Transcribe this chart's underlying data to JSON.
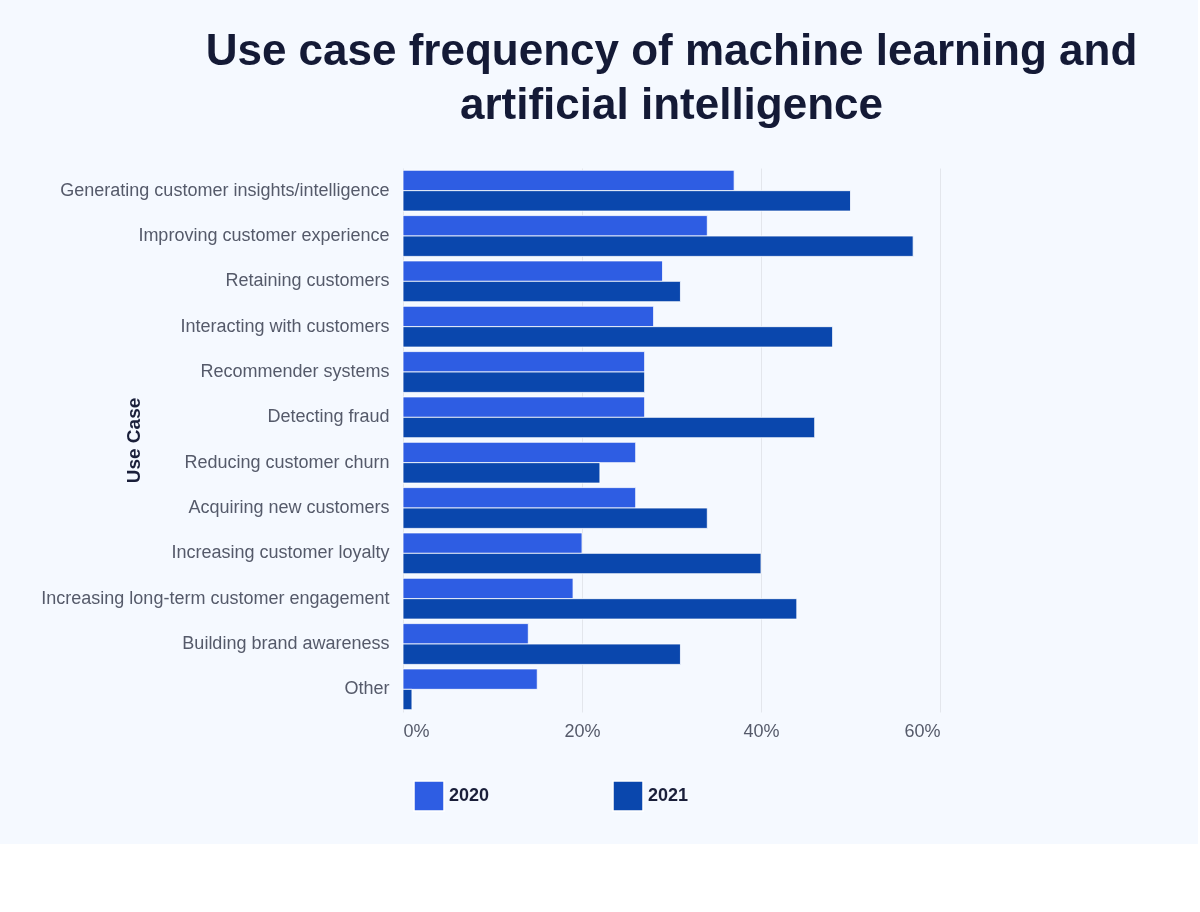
{
  "chart_data": {
    "type": "bar",
    "orientation": "horizontal",
    "title": "Use case frequency of machine learning and artificial intelligence",
    "ylabel": "Use Case",
    "categories": [
      "Generating customer insights/intelligence",
      "Improving customer experience",
      "Retaining customers",
      "Interacting with customers",
      "Recommender systems",
      "Detecting fraud",
      "Reducing customer churn",
      "Acquiring new customers",
      "Increasing customer loyalty",
      "Increasing long-term customer engagement",
      "Building brand awareness",
      "Other"
    ],
    "series": [
      {
        "name": "2020",
        "color": "#2e5de3",
        "values": [
          37,
          34,
          29,
          28,
          27,
          27,
          26,
          26,
          20,
          19,
          14,
          15
        ]
      },
      {
        "name": "2021",
        "color": "#0a47ad",
        "values": [
          50,
          57,
          31,
          48,
          27,
          46,
          22,
          34,
          40,
          44,
          31,
          1
        ]
      }
    ],
    "xlim": [
      0,
      60
    ],
    "xticks": [
      {
        "value": 0,
        "label": "0%"
      },
      {
        "value": 20,
        "label": "20%"
      },
      {
        "value": 40,
        "label": "40%"
      },
      {
        "value": 60,
        "label": "60%"
      }
    ],
    "grid": "x",
    "legend": "bottom"
  }
}
